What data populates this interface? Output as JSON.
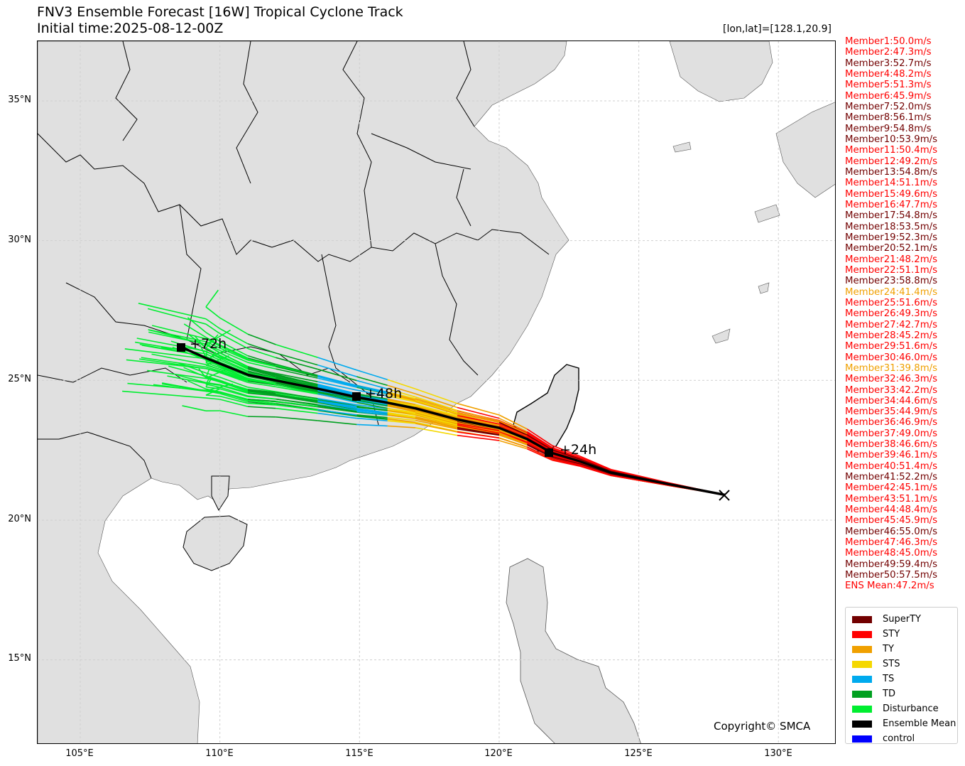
{
  "header": {
    "title_line1": "FNV3 Ensemble Forecast [16W] Tropical Cyclone Track",
    "title_line2": "Initial time:2025-08-12-00Z",
    "coord_label": "[lon,lat]=[128.1,20.9]"
  },
  "axes": {
    "x_ticks": [
      "105°E",
      "110°E",
      "115°E",
      "120°E",
      "125°E",
      "130°E"
    ],
    "y_ticks": [
      "35°N",
      "30°N",
      "25°N",
      "20°N",
      "15°N"
    ],
    "lon_range": [
      103.5,
      132.0
    ],
    "lat_range": [
      12.1,
      37.2
    ]
  },
  "annotations": {
    "t24": "+24h",
    "t48": "+48h",
    "t72": "+72h",
    "start_marker": "x",
    "start_lon": 128.1,
    "start_lat": 20.9
  },
  "members": [
    {
      "label": "Member1:50.0m/s",
      "cat": "STY"
    },
    {
      "label": "Member2:47.3m/s",
      "cat": "STY"
    },
    {
      "label": "Member3:52.7m/s",
      "cat": "SuperTY"
    },
    {
      "label": "Member4:48.2m/s",
      "cat": "STY"
    },
    {
      "label": "Member5:51.3m/s",
      "cat": "STY"
    },
    {
      "label": "Member6:45.9m/s",
      "cat": "STY"
    },
    {
      "label": "Member7:52.0m/s",
      "cat": "SuperTY"
    },
    {
      "label": "Member8:56.1m/s",
      "cat": "SuperTY"
    },
    {
      "label": "Member9:54.8m/s",
      "cat": "SuperTY"
    },
    {
      "label": "Member10:53.9m/s",
      "cat": "SuperTY"
    },
    {
      "label": "Member11:50.4m/s",
      "cat": "STY"
    },
    {
      "label": "Member12:49.2m/s",
      "cat": "STY"
    },
    {
      "label": "Member13:54.8m/s",
      "cat": "SuperTY"
    },
    {
      "label": "Member14:51.1m/s",
      "cat": "STY"
    },
    {
      "label": "Member15:49.6m/s",
      "cat": "STY"
    },
    {
      "label": "Member16:47.7m/s",
      "cat": "STY"
    },
    {
      "label": "Member17:54.8m/s",
      "cat": "SuperTY"
    },
    {
      "label": "Member18:53.5m/s",
      "cat": "SuperTY"
    },
    {
      "label": "Member19:52.3m/s",
      "cat": "SuperTY"
    },
    {
      "label": "Member20:52.1m/s",
      "cat": "SuperTY"
    },
    {
      "label": "Member21:48.2m/s",
      "cat": "STY"
    },
    {
      "label": "Member22:51.1m/s",
      "cat": "STY"
    },
    {
      "label": "Member23:58.8m/s",
      "cat": "SuperTY"
    },
    {
      "label": "Member24:41.4m/s",
      "cat": "TY"
    },
    {
      "label": "Member25:51.6m/s",
      "cat": "STY"
    },
    {
      "label": "Member26:49.3m/s",
      "cat": "STY"
    },
    {
      "label": "Member27:42.7m/s",
      "cat": "STY"
    },
    {
      "label": "Member28:45.2m/s",
      "cat": "STY"
    },
    {
      "label": "Member29:51.6m/s",
      "cat": "STY"
    },
    {
      "label": "Member30:46.0m/s",
      "cat": "STY"
    },
    {
      "label": "Member31:39.8m/s",
      "cat": "TY"
    },
    {
      "label": "Member32:46.3m/s",
      "cat": "STY"
    },
    {
      "label": "Member33:42.2m/s",
      "cat": "STY"
    },
    {
      "label": "Member34:44.6m/s",
      "cat": "STY"
    },
    {
      "label": "Member35:44.9m/s",
      "cat": "STY"
    },
    {
      "label": "Member36:46.9m/s",
      "cat": "STY"
    },
    {
      "label": "Member37:49.0m/s",
      "cat": "STY"
    },
    {
      "label": "Member38:46.6m/s",
      "cat": "STY"
    },
    {
      "label": "Member39:46.1m/s",
      "cat": "STY"
    },
    {
      "label": "Member40:51.4m/s",
      "cat": "STY"
    },
    {
      "label": "Member41:52.2m/s",
      "cat": "SuperTY"
    },
    {
      "label": "Member42:45.1m/s",
      "cat": "STY"
    },
    {
      "label": "Member43:51.1m/s",
      "cat": "STY"
    },
    {
      "label": "Member44:48.4m/s",
      "cat": "STY"
    },
    {
      "label": "Member45:45.9m/s",
      "cat": "STY"
    },
    {
      "label": "Member46:55.0m/s",
      "cat": "SuperTY"
    },
    {
      "label": "Member47:46.3m/s",
      "cat": "STY"
    },
    {
      "label": "Member48:45.0m/s",
      "cat": "STY"
    },
    {
      "label": "Member49:59.4m/s",
      "cat": "SuperTY"
    },
    {
      "label": "Member50:57.5m/s",
      "cat": "SuperTY"
    },
    {
      "label": "ENS Mean:47.2m/s",
      "cat": "STY"
    }
  ],
  "legend": {
    "items": [
      {
        "label": "SuperTY",
        "color": "#720000"
      },
      {
        "label": "STY",
        "color": "#ff0000"
      },
      {
        "label": "TY",
        "color": "#f0a000"
      },
      {
        "label": "STS",
        "color": "#f5d800"
      },
      {
        "label": "TS",
        "color": "#00aaee"
      },
      {
        "label": "TD",
        "color": "#00a020"
      },
      {
        "label": "Disturbance",
        "color": "#00ee30"
      },
      {
        "label": "Ensemble Mean",
        "color": "#000000"
      },
      {
        "label": "control",
        "color": "#0000ff"
      }
    ]
  },
  "colors": {
    "SuperTY": "#720000",
    "STY": "#ff0000",
    "TY": "#f0a000",
    "STS": "#f5d800",
    "TS": "#00aaee",
    "TD": "#00a020",
    "Disturbance": "#00ee30",
    "land": "#e0e0e0",
    "ocean": "#ffffff"
  },
  "ensemble_mean_track": [
    [
      128.1,
      20.9
    ],
    [
      126.0,
      21.3
    ],
    [
      124.0,
      21.7
    ],
    [
      122.9,
      22.1
    ],
    [
      121.9,
      22.4
    ],
    [
      121.0,
      22.9
    ],
    [
      120.0,
      23.3
    ],
    [
      118.5,
      23.6
    ],
    [
      117.0,
      24.0
    ],
    [
      116.0,
      24.2
    ],
    [
      114.9,
      24.4
    ],
    [
      113.5,
      24.7
    ],
    [
      112.0,
      25.0
    ],
    [
      111.0,
      25.2
    ],
    [
      110.0,
      25.6
    ],
    [
      109.5,
      25.8
    ],
    [
      108.6,
      26.2
    ]
  ],
  "footer": {
    "copyright": "Copyright© SMCA"
  }
}
